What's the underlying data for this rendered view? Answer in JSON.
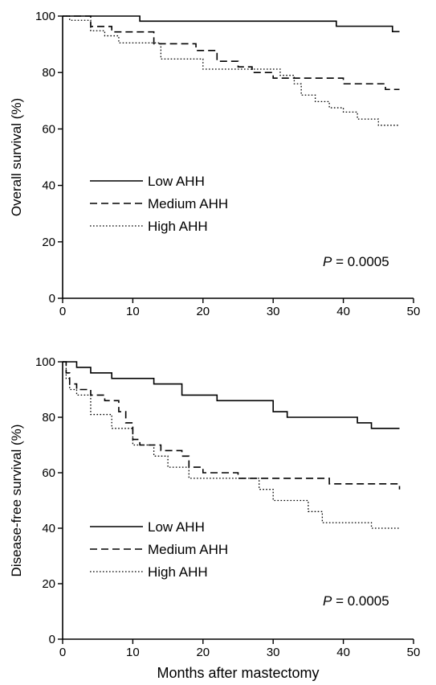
{
  "chart_data": [
    {
      "type": "line",
      "step": true,
      "xlabel": "",
      "ylabel": "Overall survival (%)",
      "xlim": [
        0,
        50
      ],
      "ylim": [
        0,
        100
      ],
      "xticks": [
        "0",
        "10",
        "20",
        "30",
        "40",
        "50"
      ],
      "yticks": [
        "0",
        "20",
        "40",
        "60",
        "80",
        "100"
      ],
      "grid": false,
      "legend_placement": "left-middle",
      "annotation": {
        "prefix": "P",
        "text": " = 0.0005"
      },
      "series": [
        {
          "name": "Low AHH",
          "style": "solid",
          "x": [
            0,
            11,
            39,
            47,
            48
          ],
          "y": [
            100,
            98.2,
            96.4,
            94.5,
            94.5
          ]
        },
        {
          "name": "Medium AHH",
          "style": "dashed",
          "x": [
            0,
            4,
            7,
            13,
            19,
            22,
            25,
            27,
            30,
            40,
            46,
            48
          ],
          "y": [
            100,
            96.3,
            94.4,
            90.2,
            87.8,
            84,
            82,
            80,
            78,
            76,
            74,
            74
          ]
        },
        {
          "name": "High AHH",
          "style": "dotted",
          "x": [
            0,
            1,
            4,
            6,
            8,
            14,
            20,
            31,
            33,
            34,
            36,
            38,
            40,
            42,
            43,
            45,
            48
          ],
          "y": [
            100,
            98.5,
            94.8,
            93,
            90.5,
            84.8,
            81.2,
            79,
            76,
            72,
            69.7,
            67.5,
            66,
            63.5,
            63.5,
            61.3,
            61.3
          ]
        }
      ]
    },
    {
      "type": "line",
      "step": true,
      "xlabel": "Months after mastectomy",
      "ylabel": "Disease-free survival (%)",
      "xlim": [
        0,
        50
      ],
      "ylim": [
        0,
        100
      ],
      "xticks": [
        "0",
        "10",
        "20",
        "30",
        "40",
        "50"
      ],
      "yticks": [
        "0",
        "20",
        "40",
        "60",
        "80",
        "100"
      ],
      "grid": false,
      "legend_placement": "left-middle",
      "annotation": {
        "prefix": "P",
        "text": " = 0.0005"
      },
      "series": [
        {
          "name": "Low AHH",
          "style": "solid",
          "x": [
            0,
            2,
            4,
            7,
            13,
            17,
            22,
            30,
            32,
            42,
            44,
            48
          ],
          "y": [
            100,
            98,
            96,
            94,
            92,
            88,
            86,
            82,
            80,
            78,
            76,
            76
          ]
        },
        {
          "name": "Medium AHH",
          "style": "dashed",
          "x": [
            0,
            0.5,
            1,
            2,
            4,
            6,
            8,
            9,
            10,
            11,
            14,
            17,
            18,
            20,
            25,
            30,
            38,
            48
          ],
          "y": [
            100,
            96,
            92,
            90,
            88,
            86,
            82,
            78,
            72,
            70,
            68,
            66,
            62,
            60,
            58,
            58,
            56,
            54
          ]
        },
        {
          "name": "High AHH",
          "style": "dotted",
          "x": [
            0,
            0.5,
            1,
            2,
            4,
            7,
            10,
            13,
            15,
            18,
            25,
            28,
            30,
            35,
            37,
            44,
            48
          ],
          "y": [
            100,
            94,
            90,
            88,
            81,
            76,
            70,
            66,
            62,
            58,
            58,
            54,
            50,
            46,
            42,
            40,
            40
          ]
        }
      ]
    }
  ]
}
